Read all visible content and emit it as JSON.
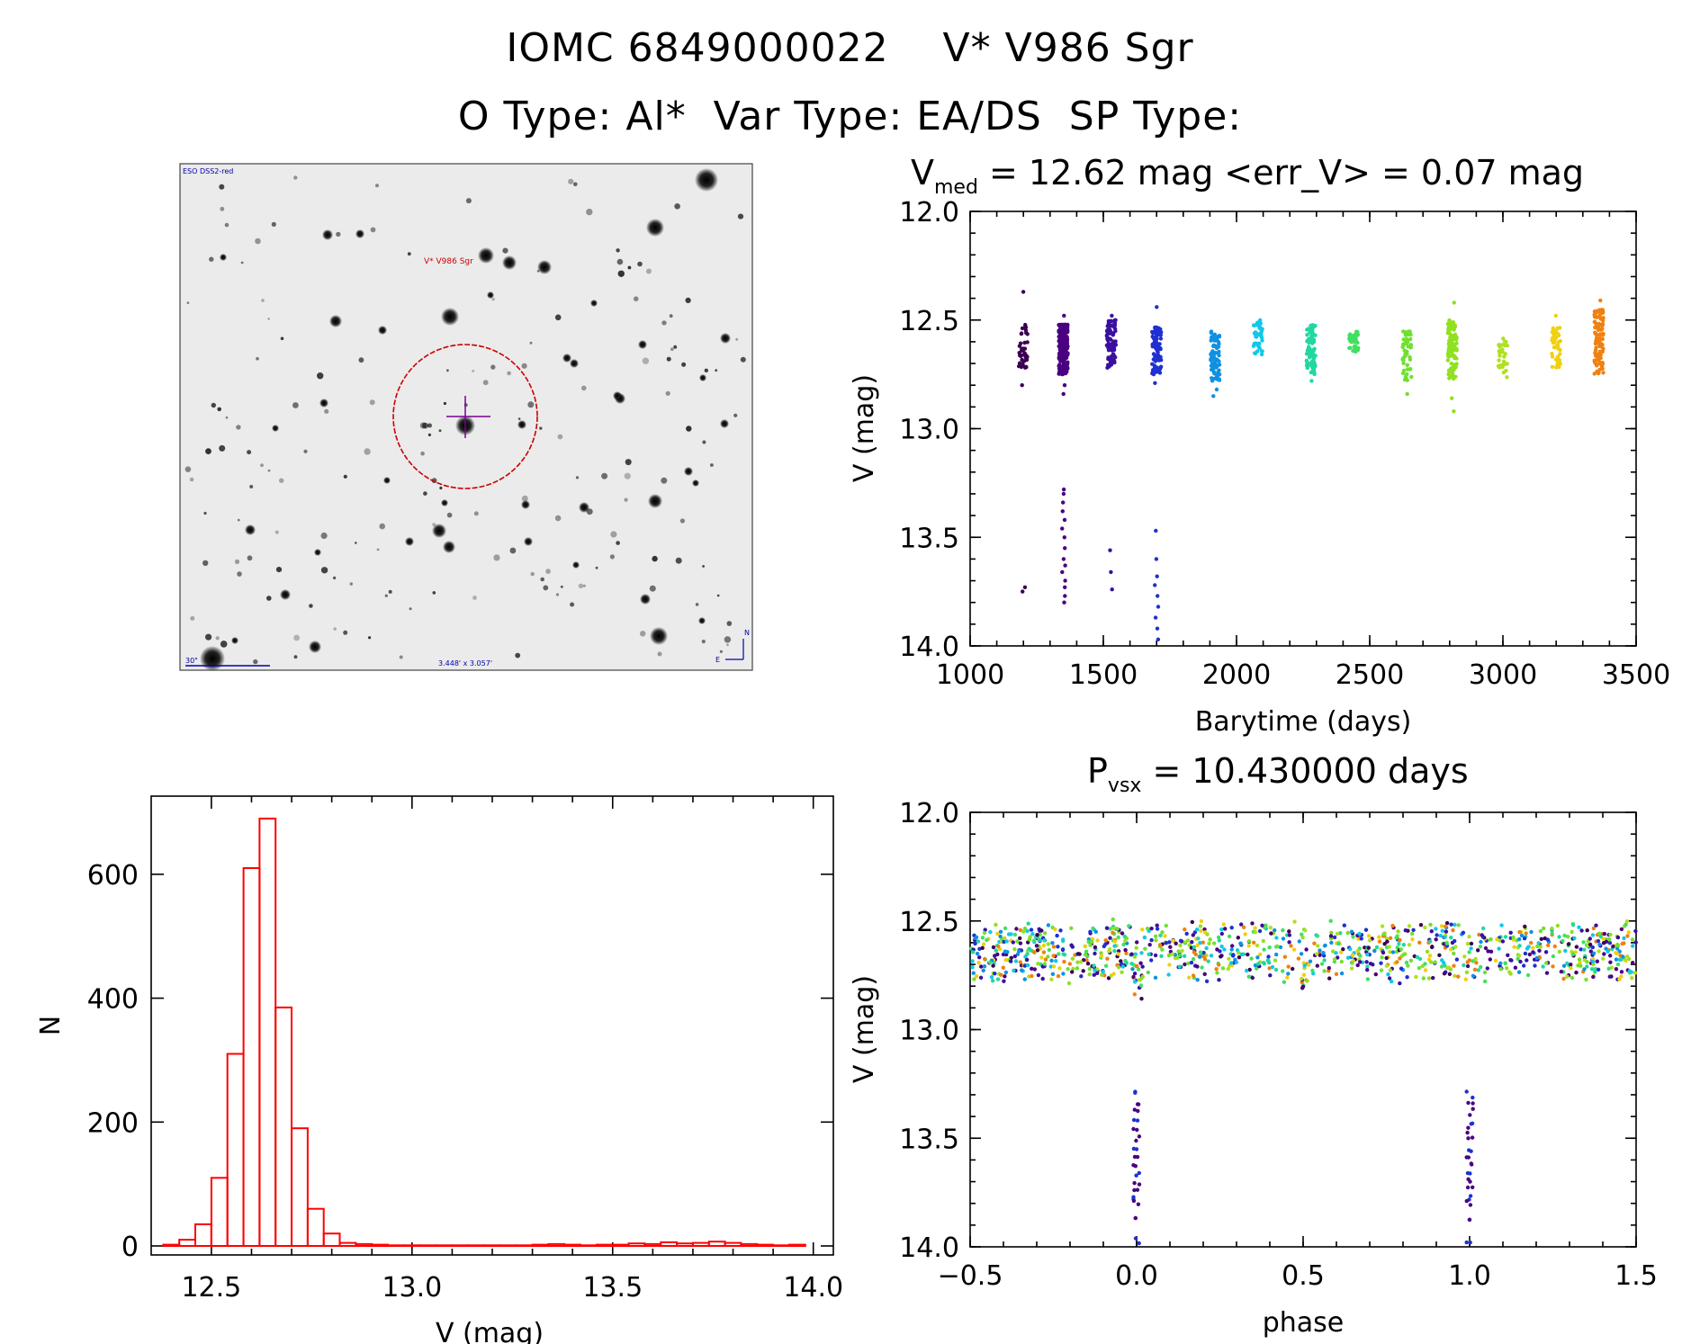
{
  "header": {
    "line1": "IOMC 6849000022    V* V986 Sgr",
    "line2": "O Type: Al*  Var Type: EA/DS  SP Type:"
  },
  "finder": {
    "label_top_left": "ESO DSS2-red",
    "target_label": "V* V986 Sgr",
    "scale_label": "30\"",
    "size_label": "3.448' x 3.057'",
    "compass_n": "N",
    "compass_e": "E",
    "colors": {
      "target_label": "#cc0000",
      "circle": "#cc0000",
      "crosshair": "#7a0090",
      "ink": "#0000aa"
    }
  },
  "chart_data": [
    {
      "id": "lightcurve",
      "type": "scatter",
      "title_main": "V",
      "title_sub": "med",
      "title_rest": " = 12.62 mag <err_V> = 0.07 mag",
      "xlabel": "Barytime (days)",
      "ylabel": "V (mag)",
      "xlim": [
        1000,
        3500
      ],
      "ylim": [
        14.0,
        12.0
      ],
      "xticks": [
        "1000",
        "1500",
        "2000",
        "2500",
        "3000",
        "3500"
      ],
      "yticks": [
        "12.0",
        "12.5",
        "13.0",
        "13.5",
        "14.0"
      ],
      "groups": [
        {
          "x": 1200,
          "n": 40,
          "lo": 12.52,
          "hi": 12.72,
          "color": "#3a0050",
          "outliers": [
            12.37,
            12.8,
            13.73,
            13.75
          ]
        },
        {
          "x": 1350,
          "n": 200,
          "lo": 12.52,
          "hi": 12.75,
          "color": "#4a0080",
          "outliers": [
            12.48,
            12.8,
            12.84,
            13.28,
            13.3,
            13.34,
            13.38,
            13.42,
            13.46,
            13.5,
            13.55,
            13.6,
            13.63,
            13.66,
            13.7,
            13.73,
            13.77,
            13.8
          ]
        },
        {
          "x": 1530,
          "n": 90,
          "lo": 12.5,
          "hi": 12.72,
          "color": "#3a10a0",
          "outliers": [
            12.48,
            13.56,
            13.66,
            13.74
          ]
        },
        {
          "x": 1700,
          "n": 90,
          "lo": 12.53,
          "hi": 12.75,
          "color": "#2030d0",
          "outliers": [
            12.44,
            12.79,
            13.47,
            13.6,
            13.68,
            13.72,
            13.77,
            13.82,
            13.87,
            13.92,
            13.97
          ]
        },
        {
          "x": 1920,
          "n": 80,
          "lo": 12.55,
          "hi": 12.78,
          "color": "#1090e0",
          "outliers": [
            12.82,
            12.85
          ]
        },
        {
          "x": 2080,
          "n": 40,
          "lo": 12.5,
          "hi": 12.66,
          "color": "#10c8e8",
          "outliers": []
        },
        {
          "x": 2280,
          "n": 80,
          "lo": 12.52,
          "hi": 12.75,
          "color": "#20d8a0",
          "outliers": [
            12.78
          ]
        },
        {
          "x": 2440,
          "n": 40,
          "lo": 12.55,
          "hi": 12.65,
          "color": "#40e060",
          "outliers": []
        },
        {
          "x": 2640,
          "n": 50,
          "lo": 12.55,
          "hi": 12.8,
          "color": "#70e030",
          "outliers": [
            12.84
          ]
        },
        {
          "x": 2810,
          "n": 110,
          "lo": 12.5,
          "hi": 12.77,
          "color": "#90e020",
          "outliers": [
            12.42,
            12.86,
            12.92
          ]
        },
        {
          "x": 3000,
          "n": 30,
          "lo": 12.58,
          "hi": 12.78,
          "color": "#b0e020",
          "outliers": []
        },
        {
          "x": 3200,
          "n": 50,
          "lo": 12.53,
          "hi": 12.72,
          "color": "#f0d010",
          "outliers": [
            12.48
          ]
        },
        {
          "x": 3360,
          "n": 110,
          "lo": 12.45,
          "hi": 12.76,
          "color": "#f08010",
          "outliers": [
            12.41
          ]
        }
      ]
    },
    {
      "id": "histogram",
      "type": "bar",
      "xlabel": "V (mag)",
      "ylabel": "N",
      "xlim": [
        12.35,
        14.05
      ],
      "ylim": [
        0,
        700
      ],
      "bin_width": 0.04,
      "bar_color": "#ff0000",
      "xticks": [
        "12.5",
        "13.0",
        "13.5",
        "14.0"
      ],
      "yticks": [
        "0",
        "200",
        "400",
        "600"
      ],
      "bins_start": [
        12.38,
        12.42,
        12.46,
        12.5,
        12.54,
        12.58,
        12.62,
        12.66,
        12.7,
        12.74,
        12.78,
        12.82,
        12.86,
        12.9,
        12.94,
        12.98,
        13.02,
        13.06,
        13.1,
        13.14,
        13.18,
        13.22,
        13.26,
        13.3,
        13.34,
        13.38,
        13.42,
        13.46,
        13.5,
        13.54,
        13.58,
        13.62,
        13.66,
        13.7,
        13.74,
        13.78,
        13.82,
        13.86,
        13.9,
        13.94
      ],
      "counts": [
        2,
        10,
        35,
        110,
        310,
        610,
        690,
        385,
        190,
        60,
        20,
        5,
        3,
        2,
        1,
        1,
        1,
        1,
        1,
        1,
        1,
        1,
        1,
        2,
        3,
        2,
        1,
        2,
        2,
        4,
        3,
        6,
        4,
        5,
        7,
        5,
        3,
        2,
        1,
        2
      ]
    },
    {
      "id": "phased",
      "type": "scatter",
      "title_main": "P",
      "title_sub": "vsx",
      "title_rest": " = 10.430000 days",
      "xlabel": "phase",
      "ylabel": "V (mag)",
      "xlim": [
        -0.5,
        1.5
      ],
      "ylim": [
        14.0,
        12.0
      ],
      "xticks": [
        "−0.5",
        "0.0",
        "0.5",
        "1.0",
        "1.5"
      ],
      "yticks": [
        "12.0",
        "12.5",
        "13.0",
        "13.5",
        "14.0"
      ],
      "period_days": 10.43,
      "band": {
        "lo": 12.5,
        "hi": 12.78
      },
      "colors": [
        "#3a0050",
        "#4a0080",
        "#3a10a0",
        "#2030d0",
        "#1090e0",
        "#10c8e8",
        "#20d8a0",
        "#40e060",
        "#70e030",
        "#90e020",
        "#b0e020",
        "#f0d010",
        "#f08010"
      ],
      "eclipse": {
        "phases": [
          0.0,
          1.0
        ],
        "v": [
          13.3,
          13.34,
          13.38,
          13.42,
          13.46,
          13.5,
          13.55,
          13.6,
          13.63,
          13.66,
          13.7,
          13.73,
          13.77,
          13.8,
          13.87,
          13.97
        ]
      },
      "secondary_dips": [
        0.5
      ]
    }
  ]
}
